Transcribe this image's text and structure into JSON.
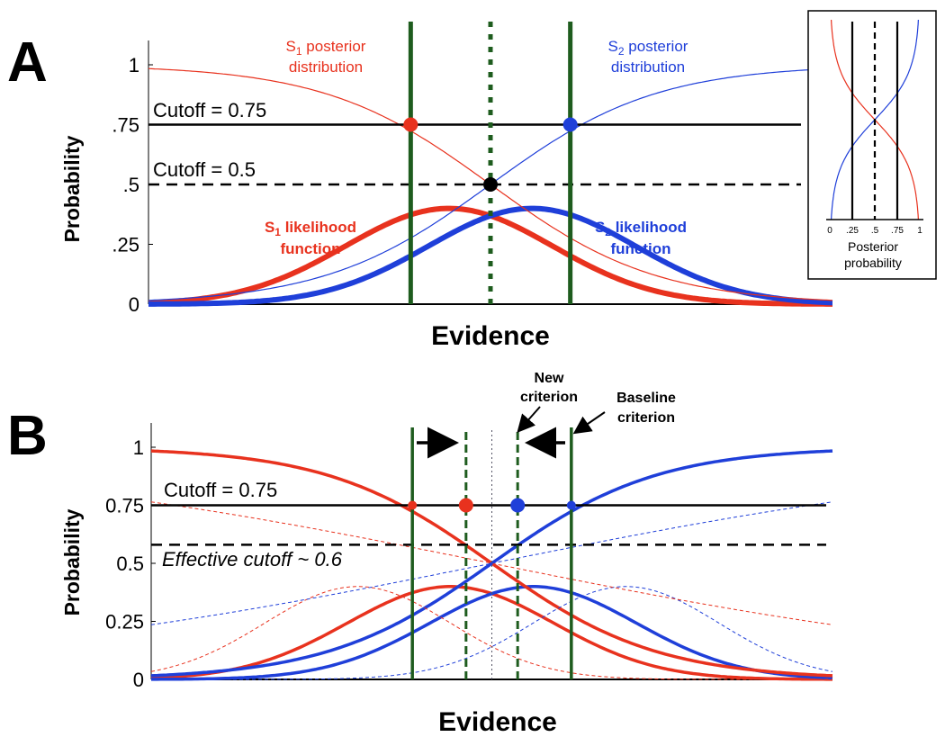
{
  "colors": {
    "s1": "#e8321e",
    "s2": "#1f3fd9",
    "criterion": "#1e5c1e",
    "black": "#000000"
  },
  "panel_a": {
    "letter": "A",
    "s1_posterior_label": {
      "prefix": "S",
      "sub": "1",
      "line1_rest": " posterior",
      "line2": "distribution"
    },
    "s2_posterior_label": {
      "prefix": "S",
      "sub": "2",
      "line1_rest": " posterior",
      "line2": "distribution"
    },
    "s1_likelihood_label": {
      "prefix": "S",
      "sub": "1",
      "line1_rest": " likelihood",
      "line2": "function"
    },
    "s2_likelihood_label": {
      "prefix": "S",
      "sub": "2",
      "line1_rest": " likelihood",
      "line2": "function"
    },
    "cutoff_075_label": "Cutoff = 0.75",
    "cutoff_05_label": "Cutoff = 0.5",
    "inset": {
      "ticks": [
        "0",
        ".25",
        ".5",
        ".75",
        "1"
      ],
      "title_line1": "Posterior",
      "title_line2": "probability"
    }
  },
  "panel_b": {
    "letter": "B",
    "cutoff_075_label": "Cutoff = 0.75",
    "effective_cutoff_label": "Effective cutoff ~ 0.6",
    "new_criterion_line1": "New",
    "new_criterion_line2": "criterion",
    "baseline_criterion_line1": "Baseline",
    "baseline_criterion_line2": "criterion"
  },
  "chart_data": [
    {
      "panel": "A",
      "type": "line",
      "xlabel": "Evidence",
      "ylabel": "Probability",
      "ylim": [
        0,
        1.1
      ],
      "yticks": [
        0,
        0.25,
        0.5,
        0.75,
        1
      ],
      "ytick_labels": [
        "0",
        ".25",
        ".5",
        ".75",
        "1"
      ],
      "xlim": [
        -3.3,
        3.3
      ],
      "series": [
        {
          "role": "s1-likelihood",
          "kind": "gaussian",
          "mean": -0.4,
          "sd": 1.0,
          "peak": 0.4,
          "color": "#e8321e",
          "width": 6
        },
        {
          "role": "s2-likelihood",
          "kind": "gaussian",
          "mean": 0.4,
          "sd": 1.0,
          "peak": 0.4,
          "color": "#1f3fd9",
          "width": 6
        },
        {
          "role": "s1-posterior",
          "kind": "logistic-down",
          "center": 0.0,
          "slope": 0.8,
          "color": "#e8321e",
          "width": 1.2
        },
        {
          "role": "s2-posterior",
          "kind": "logistic-up",
          "center": 0.0,
          "slope": 0.8,
          "color": "#1f3fd9",
          "width": 1.2
        }
      ],
      "hlines": [
        {
          "y": 0.75,
          "style": "solid"
        },
        {
          "y": 0.5,
          "style": "dashed"
        }
      ],
      "vlines": [
        {
          "x": -0.77,
          "style": "solid"
        },
        {
          "x": 0.0,
          "style": "dotted"
        },
        {
          "x": 0.77,
          "style": "solid"
        }
      ],
      "markers": [
        {
          "x": -0.77,
          "y": 0.75,
          "color": "#e8321e"
        },
        {
          "x": 0.77,
          "y": 0.75,
          "color": "#1f3fd9"
        },
        {
          "x": 0.0,
          "y": 0.5,
          "color": "#000000"
        }
      ]
    },
    {
      "panel": "B",
      "type": "line",
      "xlabel": "Evidence",
      "ylabel": "Probability",
      "ylim": [
        0,
        1.1
      ],
      "yticks": [
        0,
        0.25,
        0.5,
        0.75,
        1
      ],
      "ytick_labels": [
        "0",
        "0.25",
        "0.5",
        "0.75",
        "1"
      ],
      "xlim": [
        -3.3,
        3.3
      ],
      "series": [
        {
          "role": "s1-likelihood-baseline",
          "kind": "gaussian",
          "mean": -0.4,
          "sd": 1.0,
          "peak": 0.4,
          "color": "#e8321e",
          "width": 3.5
        },
        {
          "role": "s2-likelihood-baseline",
          "kind": "gaussian",
          "mean": 0.4,
          "sd": 1.0,
          "peak": 0.4,
          "color": "#1f3fd9",
          "width": 3.5
        },
        {
          "role": "s1-posterior-baseline",
          "kind": "logistic-down",
          "center": 0.0,
          "slope": 0.8,
          "color": "#e8321e",
          "width": 3.5
        },
        {
          "role": "s2-posterior-baseline",
          "kind": "logistic-up",
          "center": 0.0,
          "slope": 0.8,
          "color": "#1f3fd9",
          "width": 3.5
        },
        {
          "role": "s1-likelihood-new",
          "kind": "gaussian",
          "mean": -1.3,
          "sd": 0.9,
          "peak": 0.4,
          "color": "#e8321e",
          "width": 1,
          "dash": true
        },
        {
          "role": "s2-likelihood-new",
          "kind": "gaussian",
          "mean": 1.3,
          "sd": 0.9,
          "peak": 0.4,
          "color": "#1f3fd9",
          "width": 1,
          "dash": true
        },
        {
          "role": "s1-posterior-new",
          "kind": "logistic-down",
          "center": 0.0,
          "slope": 2.8,
          "color": "#e8321e",
          "width": 1,
          "dash": true
        },
        {
          "role": "s2-posterior-new",
          "kind": "logistic-up",
          "center": 0.0,
          "slope": 2.8,
          "color": "#1f3fd9",
          "width": 1,
          "dash": true
        }
      ],
      "hlines": [
        {
          "y": 0.75,
          "style": "solid"
        },
        {
          "y": 0.58,
          "style": "dashed"
        }
      ],
      "vlines": [
        {
          "x": -0.77,
          "style": "solid"
        },
        {
          "x": -0.25,
          "style": "dashed"
        },
        {
          "x": 0.0,
          "style": "dotted"
        },
        {
          "x": 0.25,
          "style": "dashed"
        },
        {
          "x": 0.77,
          "style": "solid"
        }
      ],
      "markers": [
        {
          "x": -0.77,
          "y": 0.75,
          "color": "#e8321e",
          "size": "small"
        },
        {
          "x": -0.25,
          "y": 0.75,
          "color": "#e8321e"
        },
        {
          "x": 0.25,
          "y": 0.75,
          "color": "#1f3fd9"
        },
        {
          "x": 0.77,
          "y": 0.75,
          "color": "#1f3fd9",
          "size": "small"
        }
      ]
    }
  ]
}
